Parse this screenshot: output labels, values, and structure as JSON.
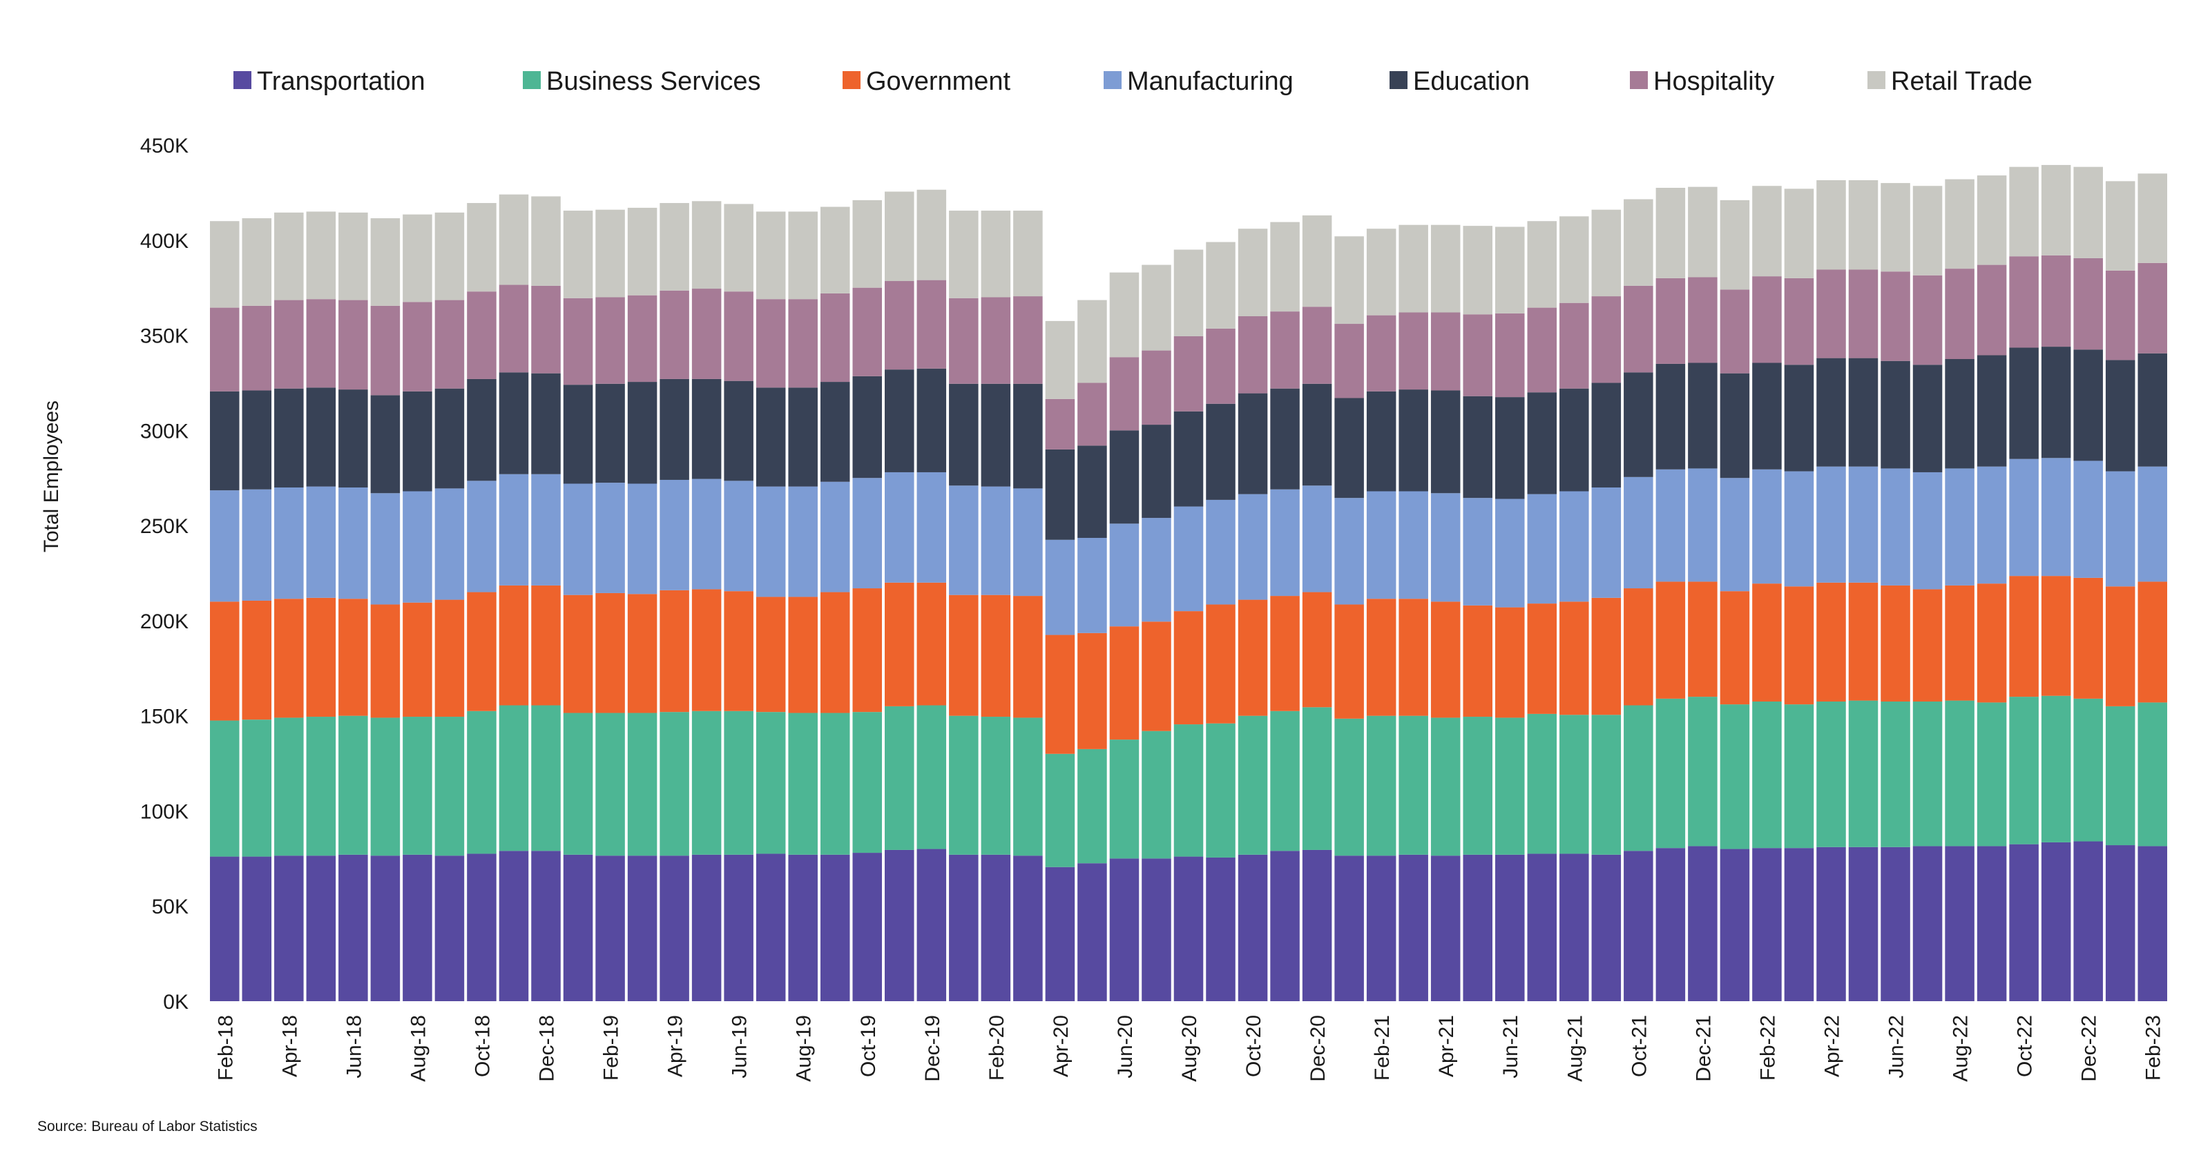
{
  "chart_data": {
    "type": "bar",
    "stacked": true,
    "ylabel": "Total Employees",
    "ylim": [
      0,
      450000
    ],
    "yticks": [
      0,
      50000,
      100000,
      150000,
      200000,
      250000,
      300000,
      350000,
      400000,
      450000
    ],
    "ytick_labels": [
      "0K",
      "50K",
      "100K",
      "150K",
      "200K",
      "250K",
      "300K",
      "350K",
      "400K",
      "450K"
    ],
    "grid": false,
    "legend_position": "top",
    "source": "Source: Bureau of Labor Statistics",
    "x_tick_labels": [
      "Feb-18",
      "Apr-18",
      "Jun-18",
      "Aug-18",
      "Oct-18",
      "Dec-18",
      "Feb-19",
      "Apr-19",
      "Jun-19",
      "Aug-19",
      "Oct-19",
      "Dec-19",
      "Feb-20",
      "Apr-20",
      "Jun-20",
      "Aug-20",
      "Oct-20",
      "Dec-20",
      "Feb-21",
      "Apr-21",
      "Jun-21",
      "Aug-21",
      "Oct-21",
      "Dec-21",
      "Feb-22",
      "Apr-22",
      "Jun-22",
      "Aug-22",
      "Oct-22",
      "Dec-22",
      "Feb-23"
    ],
    "categories": [
      "Feb-18",
      "Mar-18",
      "Apr-18",
      "May-18",
      "Jun-18",
      "Jul-18",
      "Aug-18",
      "Sep-18",
      "Oct-18",
      "Nov-18",
      "Dec-18",
      "Jan-19",
      "Feb-19",
      "Mar-19",
      "Apr-19",
      "May-19",
      "Jun-19",
      "Jul-19",
      "Aug-19",
      "Sep-19",
      "Oct-19",
      "Nov-19",
      "Dec-19",
      "Jan-20",
      "Feb-20",
      "Mar-20",
      "Apr-20",
      "May-20",
      "Jun-20",
      "Jul-20",
      "Aug-20",
      "Sep-20",
      "Oct-20",
      "Nov-20",
      "Dec-20",
      "Jan-21",
      "Feb-21",
      "Mar-21",
      "Apr-21",
      "May-21",
      "Jun-21",
      "Jul-21",
      "Aug-21",
      "Sep-21",
      "Oct-21",
      "Nov-21",
      "Dec-21",
      "Jan-22",
      "Feb-22",
      "Mar-22",
      "Apr-22",
      "May-22",
      "Jun-22",
      "Jul-22",
      "Aug-22",
      "Sep-22",
      "Oct-22",
      "Nov-22",
      "Dec-22",
      "Jan-23",
      "Feb-23"
    ],
    "series": [
      {
        "name": "Transportation",
        "color": "#574aa0",
        "values": [
          76000,
          76000,
          76500,
          76500,
          77000,
          76500,
          77000,
          76500,
          77500,
          79000,
          79000,
          77000,
          76500,
          76500,
          76500,
          77000,
          77000,
          77500,
          77000,
          77000,
          78000,
          79500,
          80000,
          77000,
          77000,
          76500,
          70500,
          72500,
          75000,
          75000,
          76000,
          75500,
          77000,
          79000,
          79500,
          76500,
          76500,
          77000,
          76500,
          77000,
          77000,
          77500,
          77500,
          77000,
          79000,
          80500,
          81500,
          80000,
          80500,
          80500,
          81000,
          81000,
          81000,
          81500,
          81500,
          81500,
          82500,
          83500,
          84000,
          82000,
          81500
        ]
      },
      {
        "name": "Business Services",
        "color": "#4db694",
        "values": [
          71500,
          72000,
          72500,
          73000,
          73000,
          72500,
          72500,
          73000,
          75000,
          76500,
          76500,
          74500,
          75000,
          75000,
          75500,
          75500,
          75500,
          74500,
          74500,
          74500,
          74000,
          75500,
          75500,
          73000,
          72500,
          72500,
          59500,
          60000,
          62500,
          67000,
          69500,
          70500,
          73000,
          73500,
          75000,
          72000,
          73500,
          73000,
          72500,
          72500,
          72000,
          73500,
          73000,
          73500,
          76500,
          78500,
          78500,
          76000,
          77000,
          75500,
          76500,
          77000,
          76500,
          76000,
          76500,
          75500,
          77500,
          77000,
          75000,
          73000,
          75500
        ]
      },
      {
        "name": "Government",
        "color": "#ee632c",
        "values": [
          62500,
          62500,
          62500,
          62500,
          61500,
          59500,
          60000,
          61500,
          62500,
          63000,
          63000,
          62000,
          63000,
          62500,
          64000,
          64000,
          63000,
          60500,
          61000,
          63500,
          65000,
          65000,
          64500,
          63500,
          64000,
          64000,
          62500,
          61000,
          59500,
          57500,
          59500,
          62500,
          61000,
          60500,
          60500,
          60000,
          61500,
          61500,
          61000,
          58500,
          58000,
          58000,
          59500,
          61500,
          61500,
          61500,
          60500,
          59500,
          62000,
          62000,
          62500,
          62000,
          61000,
          59000,
          60500,
          62500,
          63500,
          63000,
          63500,
          63000,
          63500
        ]
      },
      {
        "name": "Manufacturing",
        "color": "#7d9cd4",
        "values": [
          58500,
          58500,
          58500,
          58500,
          58500,
          58500,
          58500,
          58500,
          58500,
          58500,
          58500,
          58500,
          58000,
          58000,
          58000,
          58000,
          58000,
          58000,
          58000,
          58000,
          58000,
          58000,
          58000,
          57500,
          57000,
          56500,
          50000,
          50000,
          54000,
          54500,
          55000,
          55000,
          55500,
          56000,
          56000,
          56000,
          56500,
          56500,
          57000,
          56500,
          57000,
          57500,
          58000,
          58000,
          58500,
          59000,
          59500,
          59500,
          60000,
          60500,
          61000,
          61000,
          61500,
          61500,
          61500,
          61500,
          61500,
          62000,
          61500,
          60500,
          60500
        ]
      },
      {
        "name": "Education",
        "color": "#384256",
        "values": [
          52000,
          52000,
          52000,
          52000,
          51500,
          51500,
          52500,
          52500,
          53500,
          53500,
          53000,
          52000,
          52000,
          53500,
          53000,
          52500,
          52500,
          52000,
          52000,
          52500,
          53500,
          54000,
          54500,
          53500,
          54000,
          55000,
          47500,
          48500,
          49000,
          49000,
          50000,
          50500,
          53000,
          53000,
          53500,
          52500,
          52500,
          53500,
          54000,
          53500,
          53500,
          53500,
          54000,
          55000,
          55000,
          55500,
          55500,
          55000,
          56000,
          56000,
          57000,
          57000,
          56500,
          56500,
          57500,
          58500,
          58500,
          58500,
          58500,
          58500,
          59500
        ]
      },
      {
        "name": "Hospitality",
        "color": "#a67b96",
        "values": [
          44000,
          44500,
          46500,
          46500,
          47000,
          47000,
          47000,
          46500,
          46000,
          46000,
          46000,
          45500,
          45500,
          45500,
          46500,
          47500,
          47000,
          46500,
          46500,
          46500,
          46500,
          46500,
          46500,
          45000,
          45500,
          46000,
          26500,
          33000,
          38500,
          39000,
          39500,
          39500,
          40500,
          40500,
          40500,
          39000,
          40000,
          40500,
          41000,
          43000,
          44000,
          44500,
          45000,
          45500,
          45500,
          45000,
          45000,
          44000,
          45500,
          45500,
          46500,
          46500,
          47000,
          47000,
          47500,
          47500,
          48000,
          48000,
          48000,
          47000,
          47500
        ]
      },
      {
        "name": "Retail Trade",
        "color": "#c8c8c2",
        "values": [
          45500,
          46000,
          46000,
          46000,
          46000,
          46000,
          46000,
          46000,
          46500,
          47500,
          47000,
          46000,
          46000,
          46000,
          46000,
          46000,
          46000,
          46000,
          46000,
          45500,
          46000,
          47000,
          47500,
          46000,
          45500,
          45000,
          41000,
          43500,
          44500,
          45000,
          45500,
          45500,
          46000,
          47000,
          48000,
          46000,
          45500,
          46000,
          46000,
          46500,
          45500,
          45500,
          45500,
          45500,
          45500,
          47500,
          47500,
          47000,
          47500,
          47000,
          47000,
          47000,
          46500,
          47000,
          47000,
          47000,
          47000,
          47500,
          48000,
          47000,
          47000
        ]
      }
    ]
  }
}
